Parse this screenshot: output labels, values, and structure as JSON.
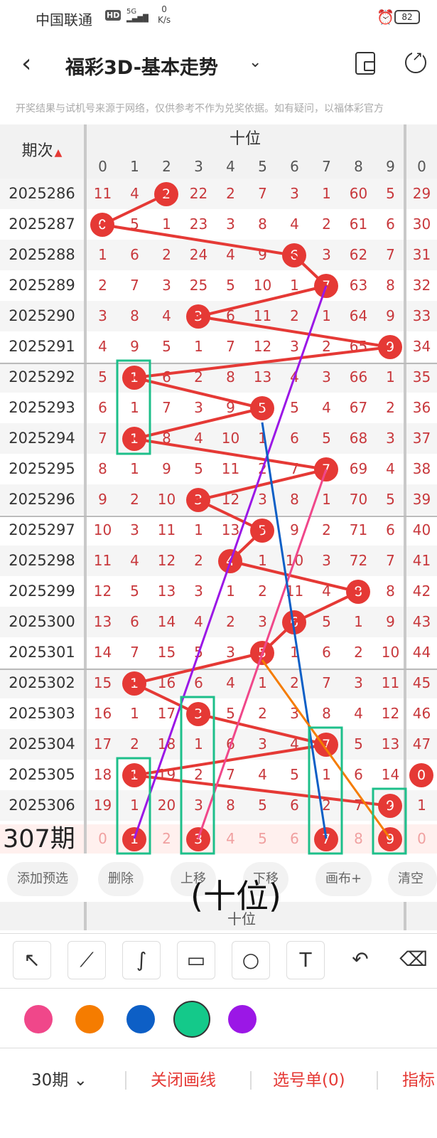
{
  "status": {
    "carrier": "中国联通",
    "hd": "HD",
    "net": "5G",
    "speed_value": "0",
    "speed_unit": "K/s",
    "battery": "82"
  },
  "nav": {
    "title": "福彩3D-基本走势"
  },
  "disclaimer": "开奖结果与试机号来源于网络，仅供参考不作为兑奖依据。如有疑问，以福体彩官方",
  "table": {
    "period_header": "期次",
    "group_header": "十位",
    "columns": [
      "0",
      "1",
      "2",
      "3",
      "4",
      "5",
      "6",
      "7",
      "8",
      "9"
    ],
    "next_group_column": "0",
    "rows": [
      {
        "period": "2025286",
        "cells": [
          "11",
          "4",
          "2",
          "22",
          "2",
          "7",
          "3",
          "1",
          "60",
          "5"
        ],
        "hit": 2,
        "next": "29"
      },
      {
        "period": "2025287",
        "cells": [
          "0",
          "5",
          "1",
          "23",
          "3",
          "8",
          "4",
          "2",
          "61",
          "6"
        ],
        "hit": 0,
        "next": "30"
      },
      {
        "period": "2025288",
        "cells": [
          "1",
          "6",
          "2",
          "24",
          "4",
          "9",
          "6",
          "3",
          "62",
          "7"
        ],
        "hit": 6,
        "next": "31"
      },
      {
        "period": "2025289",
        "cells": [
          "2",
          "7",
          "3",
          "25",
          "5",
          "10",
          "1",
          "7",
          "63",
          "8"
        ],
        "hit": 7,
        "next": "32"
      },
      {
        "period": "2025290",
        "cells": [
          "3",
          "8",
          "4",
          "3",
          "6",
          "11",
          "2",
          "1",
          "64",
          "9"
        ],
        "hit": 3,
        "next": "33"
      },
      {
        "period": "2025291",
        "cells": [
          "4",
          "9",
          "5",
          "1",
          "7",
          "12",
          "3",
          "2",
          "65",
          "9"
        ],
        "hit": 9,
        "next": "34"
      },
      {
        "period": "2025292",
        "cells": [
          "5",
          "1",
          "6",
          "2",
          "8",
          "13",
          "4",
          "3",
          "66",
          "1"
        ],
        "hit": 1,
        "next": "35"
      },
      {
        "period": "2025293",
        "cells": [
          "6",
          "1",
          "7",
          "3",
          "9",
          "5",
          "5",
          "4",
          "67",
          "2"
        ],
        "hit": 5,
        "next": "36"
      },
      {
        "period": "2025294",
        "cells": [
          "7",
          "1",
          "8",
          "4",
          "10",
          "1",
          "6",
          "5",
          "68",
          "3"
        ],
        "hit": 1,
        "next": "37"
      },
      {
        "period": "2025295",
        "cells": [
          "8",
          "1",
          "9",
          "5",
          "11",
          "2",
          "7",
          "7",
          "69",
          "4"
        ],
        "hit": 7,
        "next": "38"
      },
      {
        "period": "2025296",
        "cells": [
          "9",
          "2",
          "10",
          "3",
          "12",
          "3",
          "8",
          "1",
          "70",
          "5"
        ],
        "hit": 3,
        "next": "39"
      },
      {
        "period": "2025297",
        "cells": [
          "10",
          "3",
          "11",
          "1",
          "13",
          "5",
          "9",
          "2",
          "71",
          "6"
        ],
        "hit": 5,
        "next": "40"
      },
      {
        "period": "2025298",
        "cells": [
          "11",
          "4",
          "12",
          "2",
          "4",
          "1",
          "10",
          "3",
          "72",
          "7"
        ],
        "hit": 4,
        "next": "41"
      },
      {
        "period": "2025299",
        "cells": [
          "12",
          "5",
          "13",
          "3",
          "1",
          "2",
          "11",
          "4",
          "8",
          "8"
        ],
        "hit": 8,
        "next": "42"
      },
      {
        "period": "2025300",
        "cells": [
          "13",
          "6",
          "14",
          "4",
          "2",
          "3",
          "6",
          "5",
          "1",
          "9"
        ],
        "hit": 6,
        "next": "43"
      },
      {
        "period": "2025301",
        "cells": [
          "14",
          "7",
          "15",
          "5",
          "3",
          "5",
          "1",
          "6",
          "2",
          "10"
        ],
        "hit": 5,
        "next": "44"
      },
      {
        "period": "2025302",
        "cells": [
          "15",
          "1",
          "16",
          "6",
          "4",
          "1",
          "2",
          "7",
          "3",
          "11"
        ],
        "hit": 1,
        "next": "45"
      },
      {
        "period": "2025303",
        "cells": [
          "16",
          "1",
          "17",
          "3",
          "5",
          "2",
          "3",
          "8",
          "4",
          "12"
        ],
        "hit": 3,
        "next": "46"
      },
      {
        "period": "2025304",
        "cells": [
          "17",
          "2",
          "18",
          "1",
          "6",
          "3",
          "4",
          "7",
          "5",
          "13"
        ],
        "hit": 7,
        "next": "47"
      },
      {
        "period": "2025305",
        "cells": [
          "18",
          "1",
          "19",
          "2",
          "7",
          "4",
          "5",
          "1",
          "6",
          "14"
        ],
        "hit": 1,
        "next": "0"
      },
      {
        "period": "2025306",
        "cells": [
          "19",
          "1",
          "20",
          "3",
          "8",
          "5",
          "6",
          "2",
          "7",
          "9"
        ],
        "hit": 9,
        "next": "1"
      }
    ],
    "last_row": {
      "label": "307期",
      "cells": [
        "0",
        "1",
        "2",
        "3",
        "4",
        "5",
        "6",
        "7",
        "8",
        "9"
      ],
      "next": "0",
      "selected": [
        1,
        3,
        7,
        9
      ]
    }
  },
  "toolbar": {
    "add": "添加预选",
    "delete": "删除",
    "up": "上移",
    "down": "下移",
    "canvas": "画布+",
    "clear": "清空"
  },
  "overlay_label": "(十位)",
  "repeat_header": "十位",
  "tools": [
    "arrow-tool",
    "line-tool",
    "curve-tool",
    "rect-tool",
    "circle-tool",
    "text-tool",
    "undo-tool",
    "eraser-tool"
  ],
  "colors": {
    "pink": "#f0478a",
    "orange": "#f57c00",
    "blue": "#0d5fc6",
    "green": "#14c98a",
    "purple": "#9b17e6",
    "accent": "#e53935",
    "highlight": "#1dbf8a"
  },
  "bottom": {
    "periods": "30期",
    "close_lines": "关闭画线",
    "pick_list": "选号单(0)",
    "more": "指标"
  }
}
